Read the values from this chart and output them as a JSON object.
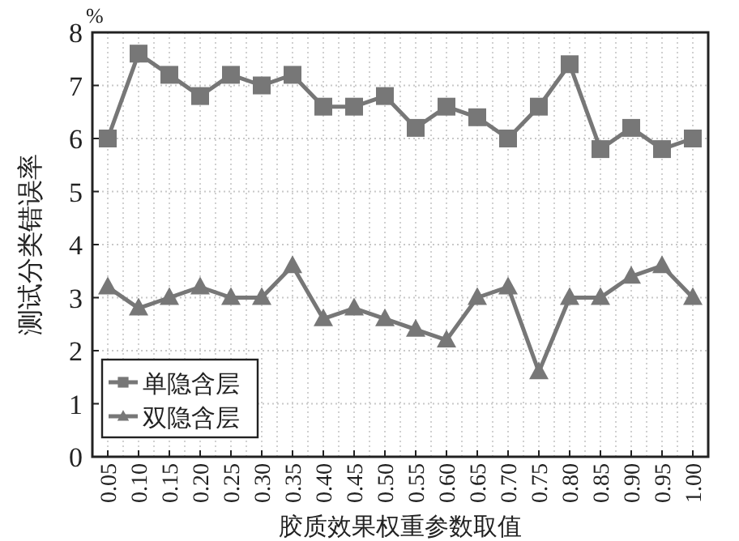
{
  "chart_data": {
    "type": "line",
    "xlabel": "胶质效果权重参数取值",
    "ylabel": "测试分类错误率",
    "annotations": [
      "%"
    ],
    "categories": [
      "0.05",
      "0.10",
      "0.15",
      "0.20",
      "0.25",
      "0.30",
      "0.35",
      "0.40",
      "0.45",
      "0.50",
      "0.55",
      "0.60",
      "0.65",
      "0.70",
      "0.75",
      "0.80",
      "0.85",
      "0.90",
      "0.95",
      "1.00"
    ],
    "series": [
      {
        "name": "单隐含层",
        "color": "#777777",
        "marker": "square",
        "values": [
          6.0,
          7.6,
          7.2,
          6.8,
          7.2,
          7.0,
          7.2,
          6.6,
          6.6,
          6.8,
          6.2,
          6.6,
          6.4,
          6.0,
          6.6,
          7.4,
          5.8,
          6.2,
          5.8,
          6.0
        ]
      },
      {
        "name": "双隐含层",
        "color": "#777777",
        "marker": "triangle",
        "values": [
          3.2,
          2.8,
          3.0,
          3.2,
          3.0,
          3.0,
          3.6,
          2.6,
          2.8,
          2.6,
          2.4,
          2.2,
          3.0,
          3.2,
          1.6,
          3.0,
          3.0,
          3.4,
          3.6,
          3.0
        ]
      }
    ],
    "ylim": [
      0,
      8
    ],
    "yticks": [
      0,
      1,
      2,
      3,
      4,
      5,
      6,
      7,
      8
    ],
    "grid": true,
    "legend": "bottom left",
    "line_style": "solid"
  }
}
